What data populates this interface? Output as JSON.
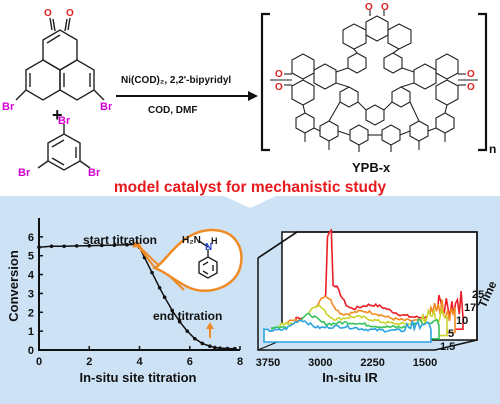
{
  "reaction": {
    "reagent_line": "Ni(COD)₂, 2,2'-bipyridyl",
    "solvent_line": "COD, DMF",
    "plus": "+",
    "product_name": "YPB-x",
    "subscript_n": "n",
    "heading": "model catalyst for mechanistic study",
    "atom_o": "O",
    "atom_br": "Br"
  },
  "left_chart": {
    "ylabel": "Conversion",
    "xlabel": "In-situ site titration",
    "start_label": "start titration",
    "end_label": "end titration",
    "inset_atoms": {
      "h2n": "H₂N",
      "n": "N",
      "h": "H"
    }
  },
  "right_chart": {
    "xlabel": "In-situ IR",
    "time_label": "Time"
  },
  "colors": {
    "panel_bg": "#cde3f5",
    "heading_red": "#e8191c",
    "oxygen": "#e0201f",
    "bromine": "#d200d2",
    "orange": "#f08a24",
    "nitrogen": "#1f45d6"
  },
  "chart_data": [
    {
      "type": "line",
      "xlabel": "In-situ site titration",
      "ylabel": "Conversion",
      "xlim": [
        0,
        8
      ],
      "ylim": [
        0,
        7
      ],
      "xticks": [
        0,
        2,
        4,
        6,
        8
      ],
      "yticks": [
        0,
        1,
        2,
        3,
        4,
        5,
        6
      ],
      "series": [
        {
          "x": [
            0,
            0.5,
            1,
            1.5,
            2,
            2.5,
            3,
            3.5,
            3.8,
            4.0,
            4.2,
            4.5,
            4.8,
            5.0,
            5.3,
            5.6,
            5.9,
            6.2,
            6.5,
            6.8,
            7.0,
            7.2,
            7.5,
            7.8
          ],
          "y": [
            5.45,
            5.5,
            5.5,
            5.52,
            5.53,
            5.55,
            5.56,
            5.58,
            5.6,
            5.45,
            4.9,
            4.1,
            3.3,
            2.8,
            2.1,
            1.5,
            1.0,
            0.6,
            0.35,
            0.2,
            0.13,
            0.1,
            0.08,
            0.07
          ]
        }
      ],
      "annotations": [
        "start titration",
        "end titration"
      ]
    },
    {
      "type": "line",
      "xlabel": "In-situ IR",
      "x_ticks": [
        3750,
        3000,
        2250,
        1500
      ],
      "z_label": "Time",
      "z_ticks": [
        1.5,
        5,
        10,
        17,
        25
      ],
      "series": [
        {
          "name": "1.5",
          "color": "#2ba4dd",
          "offset": 0,
          "amp": 1.0
        },
        {
          "name": "5",
          "color": "#38c35a",
          "offset": 1,
          "amp": 1.2
        },
        {
          "name": "10",
          "color": "#c9d32a",
          "offset": 2,
          "amp": 1.8
        },
        {
          "name": "17",
          "color": "#f28b22",
          "offset": 3,
          "amp": 2.4
        },
        {
          "name": "25",
          "color": "#ea1f25",
          "offset": 4,
          "amp": 3.2
        }
      ]
    }
  ]
}
